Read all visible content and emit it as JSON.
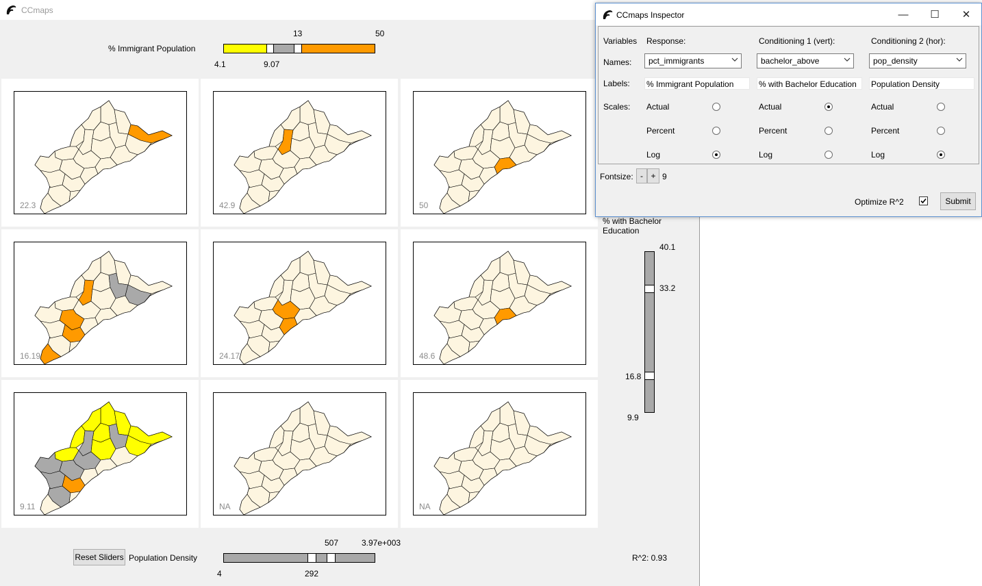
{
  "main_window": {
    "title": "CCmaps",
    "response_legend": {
      "label": "% Immigrant Population",
      "tick_low": "4.1",
      "tick_mid_low": "9.07",
      "tick_mid_high": "13",
      "tick_high": "50",
      "colors": {
        "low": "#ffff00",
        "mid": "#a9a9a9",
        "high": "#ff9a00"
      }
    },
    "panels": [
      {
        "value": "22.3"
      },
      {
        "value": "42.9"
      },
      {
        "value": "50"
      },
      {
        "value": "16.19"
      },
      {
        "value": "24.17"
      },
      {
        "value": "48.6"
      },
      {
        "value": "9.11"
      },
      {
        "value": "NA"
      },
      {
        "value": "NA"
      }
    ],
    "vertical_slider": {
      "label": "% with Bachelor Education",
      "tick_top": "40.1",
      "tick_upper": "33.2",
      "tick_lower": "16.8",
      "tick_bottom": "9.9"
    },
    "horizontal_slider": {
      "label": "Population Density",
      "tick_left": "4",
      "tick_lower": "292",
      "tick_upper": "507",
      "tick_right": "3.97e+003"
    },
    "reset_button": "Reset Sliders",
    "r_squared": "R^2: 0.93",
    "map_fill": "#fdf5e0"
  },
  "inspector": {
    "title": "CCmaps Inspector",
    "headers": {
      "variables": "Variables",
      "response": "Response:",
      "cond1": "Conditioning 1 (vert):",
      "cond2": "Conditioning 2 (hor):"
    },
    "row_labels": {
      "names": "Names:",
      "labels": "Labels:",
      "scales": "Scales:"
    },
    "names": {
      "response": "pct_immigrants",
      "cond1": "bachelor_above",
      "cond2": "pop_density"
    },
    "labels": {
      "response": "% Immigrant Population",
      "cond1": "% with Bachelor Education",
      "cond2": "Population Density"
    },
    "scale_options": [
      "Actual",
      "Percent",
      "Log"
    ],
    "scale_selected": {
      "response": "Log",
      "cond1": "Actual",
      "cond2": "Log"
    },
    "fontsize_label": "Fontsize:",
    "fontsize_minus": "-",
    "fontsize_plus": "+",
    "fontsize_value": "9",
    "optimize_label": "Optimize R^2",
    "optimize_checked": true,
    "submit": "Submit"
  }
}
